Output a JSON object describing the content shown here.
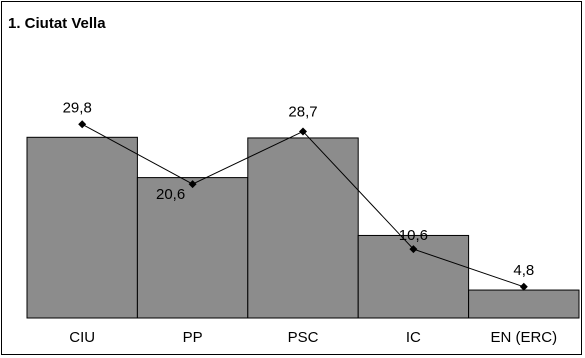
{
  "chart_data": {
    "type": "bar",
    "title": "1. Ciutat Vella",
    "categories": [
      "CIU",
      "PP",
      "PSC",
      "IC",
      "EN (ERC)"
    ],
    "bar_series": {
      "values": [
        27.8,
        21.6,
        27.7,
        12.7,
        4.3
      ],
      "color": "#8c8c8c"
    },
    "line_series": {
      "values": [
        29.8,
        20.6,
        28.7,
        10.6,
        4.8
      ],
      "marker": "diamond",
      "color": "#000000"
    },
    "data_labels": [
      "29,8",
      "20,6",
      "28,7",
      "10,6",
      "4,8"
    ],
    "ylim": [
      0,
      40
    ],
    "grid": false,
    "legend": "none"
  }
}
